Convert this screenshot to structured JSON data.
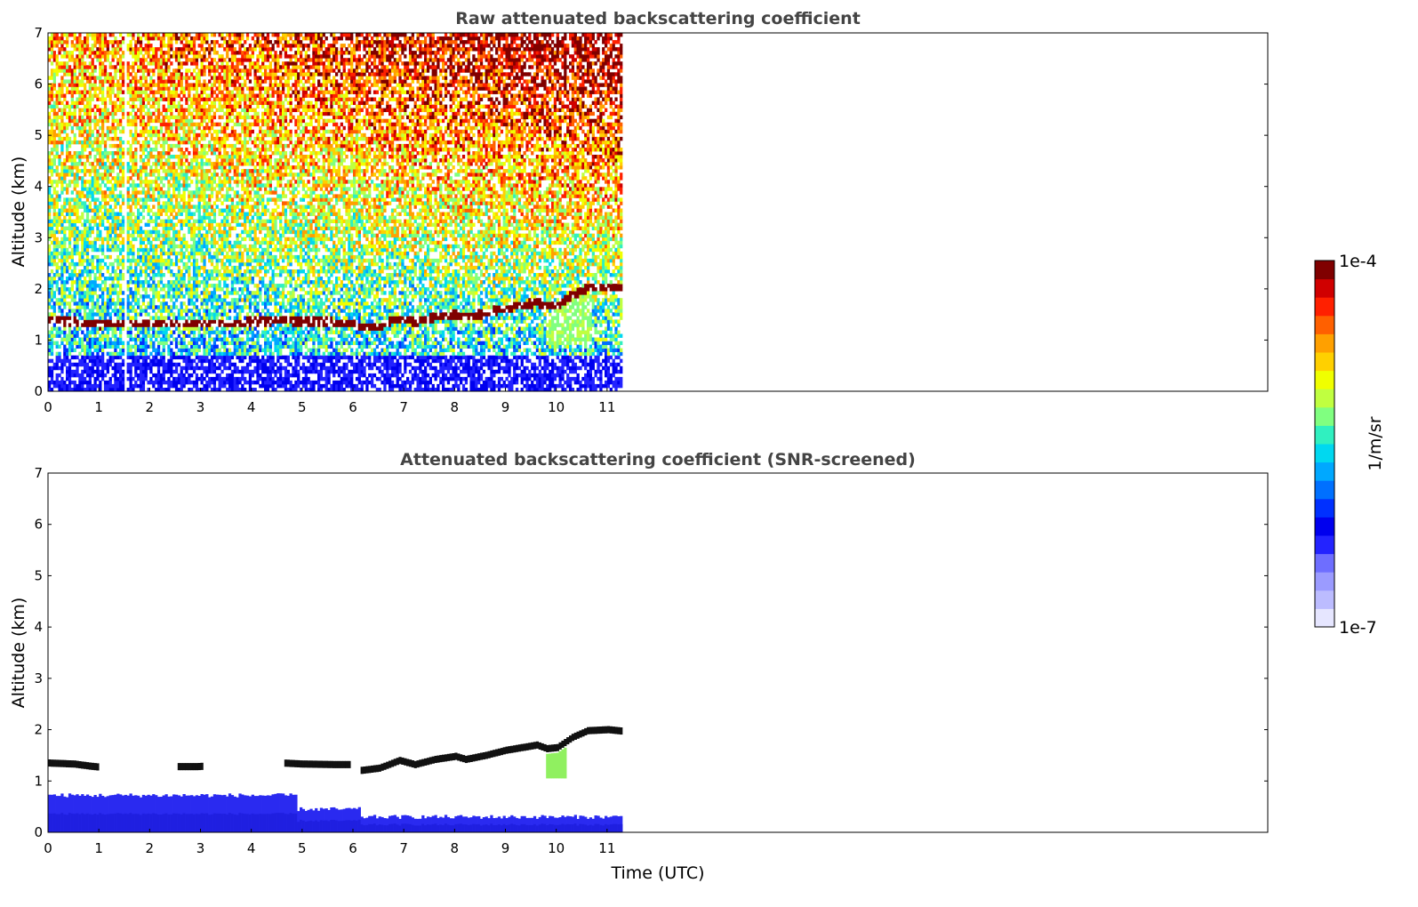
{
  "chart_data": [
    {
      "type": "heatmap",
      "title": "Raw attenuated backscattering coefficient",
      "xlabel": "",
      "ylabel": "Altitude (km)",
      "xlim": [
        0,
        24
      ],
      "ylim": [
        0,
        7
      ],
      "xticks": [
        0,
        1,
        2,
        3,
        4,
        5,
        6,
        7,
        8,
        9,
        10,
        11
      ],
      "yticks": [
        0,
        1,
        2,
        3,
        4,
        5,
        6,
        7
      ],
      "data_end_time": 11.3,
      "gaps": [
        1.47,
        1.55
      ],
      "layer": {
        "time": [
          0,
          0.5,
          0.8,
          1.0,
          2.5,
          2.9,
          4.6,
          5.0,
          5.6,
          5.9,
          6.1,
          6.5,
          6.9,
          7.2,
          7.6,
          8.0,
          8.2,
          8.6,
          9.0,
          9.3,
          9.6,
          9.8,
          10.0,
          10.3,
          10.6,
          11.0,
          11.3
        ],
        "altitude_km": [
          1.35,
          1.33,
          1.29,
          1.27,
          1.28,
          1.28,
          1.35,
          1.33,
          1.32,
          1.32,
          1.2,
          1.25,
          1.4,
          1.32,
          1.42,
          1.48,
          1.42,
          1.5,
          1.6,
          1.65,
          1.7,
          1.63,
          1.65,
          1.85,
          1.98,
          2.0,
          1.97
        ]
      }
    },
    {
      "type": "heatmap",
      "title": "Attenuated backscattering coefficient (SNR-screened)",
      "xlabel": "Time (UTC)",
      "ylabel": "Altitude (km)",
      "xlim": [
        0,
        24
      ],
      "ylim": [
        0,
        7
      ],
      "xticks": [
        0,
        1,
        2,
        3,
        4,
        5,
        6,
        7,
        8,
        9,
        10,
        11
      ],
      "yticks": [
        0,
        1,
        2,
        3,
        4,
        5,
        6,
        7
      ],
      "data_end_time": 11.3,
      "boundary_layer_top_km": [
        {
          "t0": 0,
          "t1": 4.85,
          "top": 0.72
        },
        {
          "t0": 4.85,
          "t1": 6.1,
          "top": 0.45
        },
        {
          "t0": 6.1,
          "t1": 11.3,
          "top": 0.3
        }
      ]
    }
  ],
  "colorbar": {
    "label": "1/m/sr",
    "max_label": "1e-4",
    "min_label": "1e-7",
    "colors": [
      "#e6e6ff",
      "#bcbcff",
      "#9b9bff",
      "#6e6eff",
      "#2323ff",
      "#0000ee",
      "#0030ff",
      "#0070ff",
      "#00a8ff",
      "#00d8f0",
      "#30f0c0",
      "#80ff80",
      "#c0ff40",
      "#f0ff00",
      "#ffd000",
      "#ffa000",
      "#ff6000",
      "#ff2000",
      "#d00000",
      "#800000"
    ]
  }
}
